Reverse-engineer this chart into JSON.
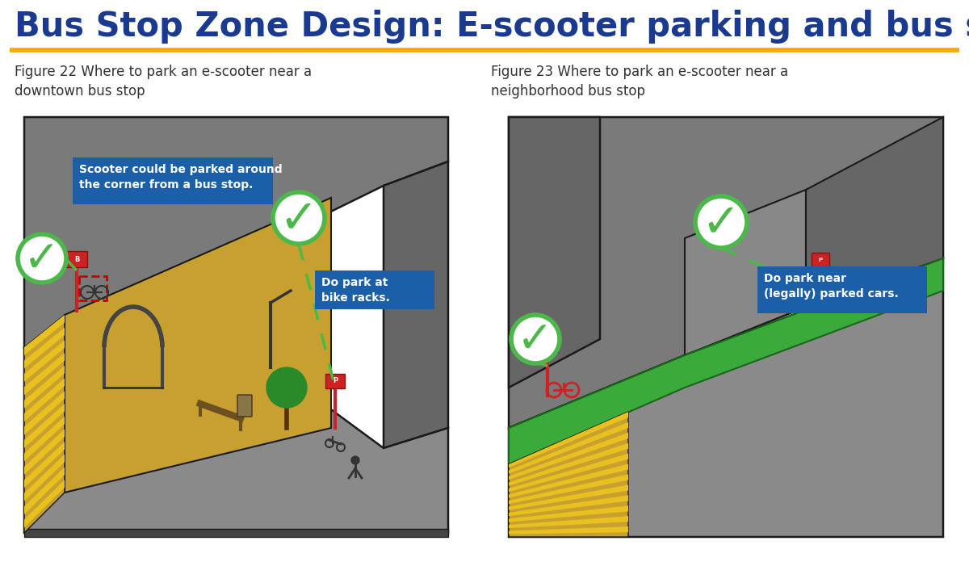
{
  "title": "Bus Stop Zone Design: E-scooter parking and bus stops",
  "title_color": "#1a3a8f",
  "title_fontsize": 30,
  "underline_color": "#f5a800",
  "fig1_caption": "Figure 22 Where to park an e-scooter near a\ndowntown bus stop",
  "fig2_caption": "Figure 23 Where to park an e-scooter near a\nneighborhood bus stop",
  "caption_fontsize": 12,
  "caption_color": "#333333",
  "callout1_text": "Scooter could be parked around\nthe corner from a bus stop.",
  "callout2_text": "Do park at\nbike racks.",
  "callout3_text": "Do park near\n(legally) parked cars.",
  "callout_bg": "#1a5fa8",
  "callout_fg": "#ffffff",
  "green_check_color": "#4db84a",
  "dashed_line_color": "#4db84a",
  "bg_color": "#ffffff",
  "road_gray": "#8a8a8a",
  "road_gray2": "#9a9a9a",
  "dark_road": "#6a6a6a",
  "sidewalk_gold": "#c8a030",
  "stripe_yellow": "#e8c020",
  "building_top": "#7a7a7a",
  "building_face": "#666666",
  "green_strip": "#3aaa3a",
  "outline": "#1a1a1a"
}
